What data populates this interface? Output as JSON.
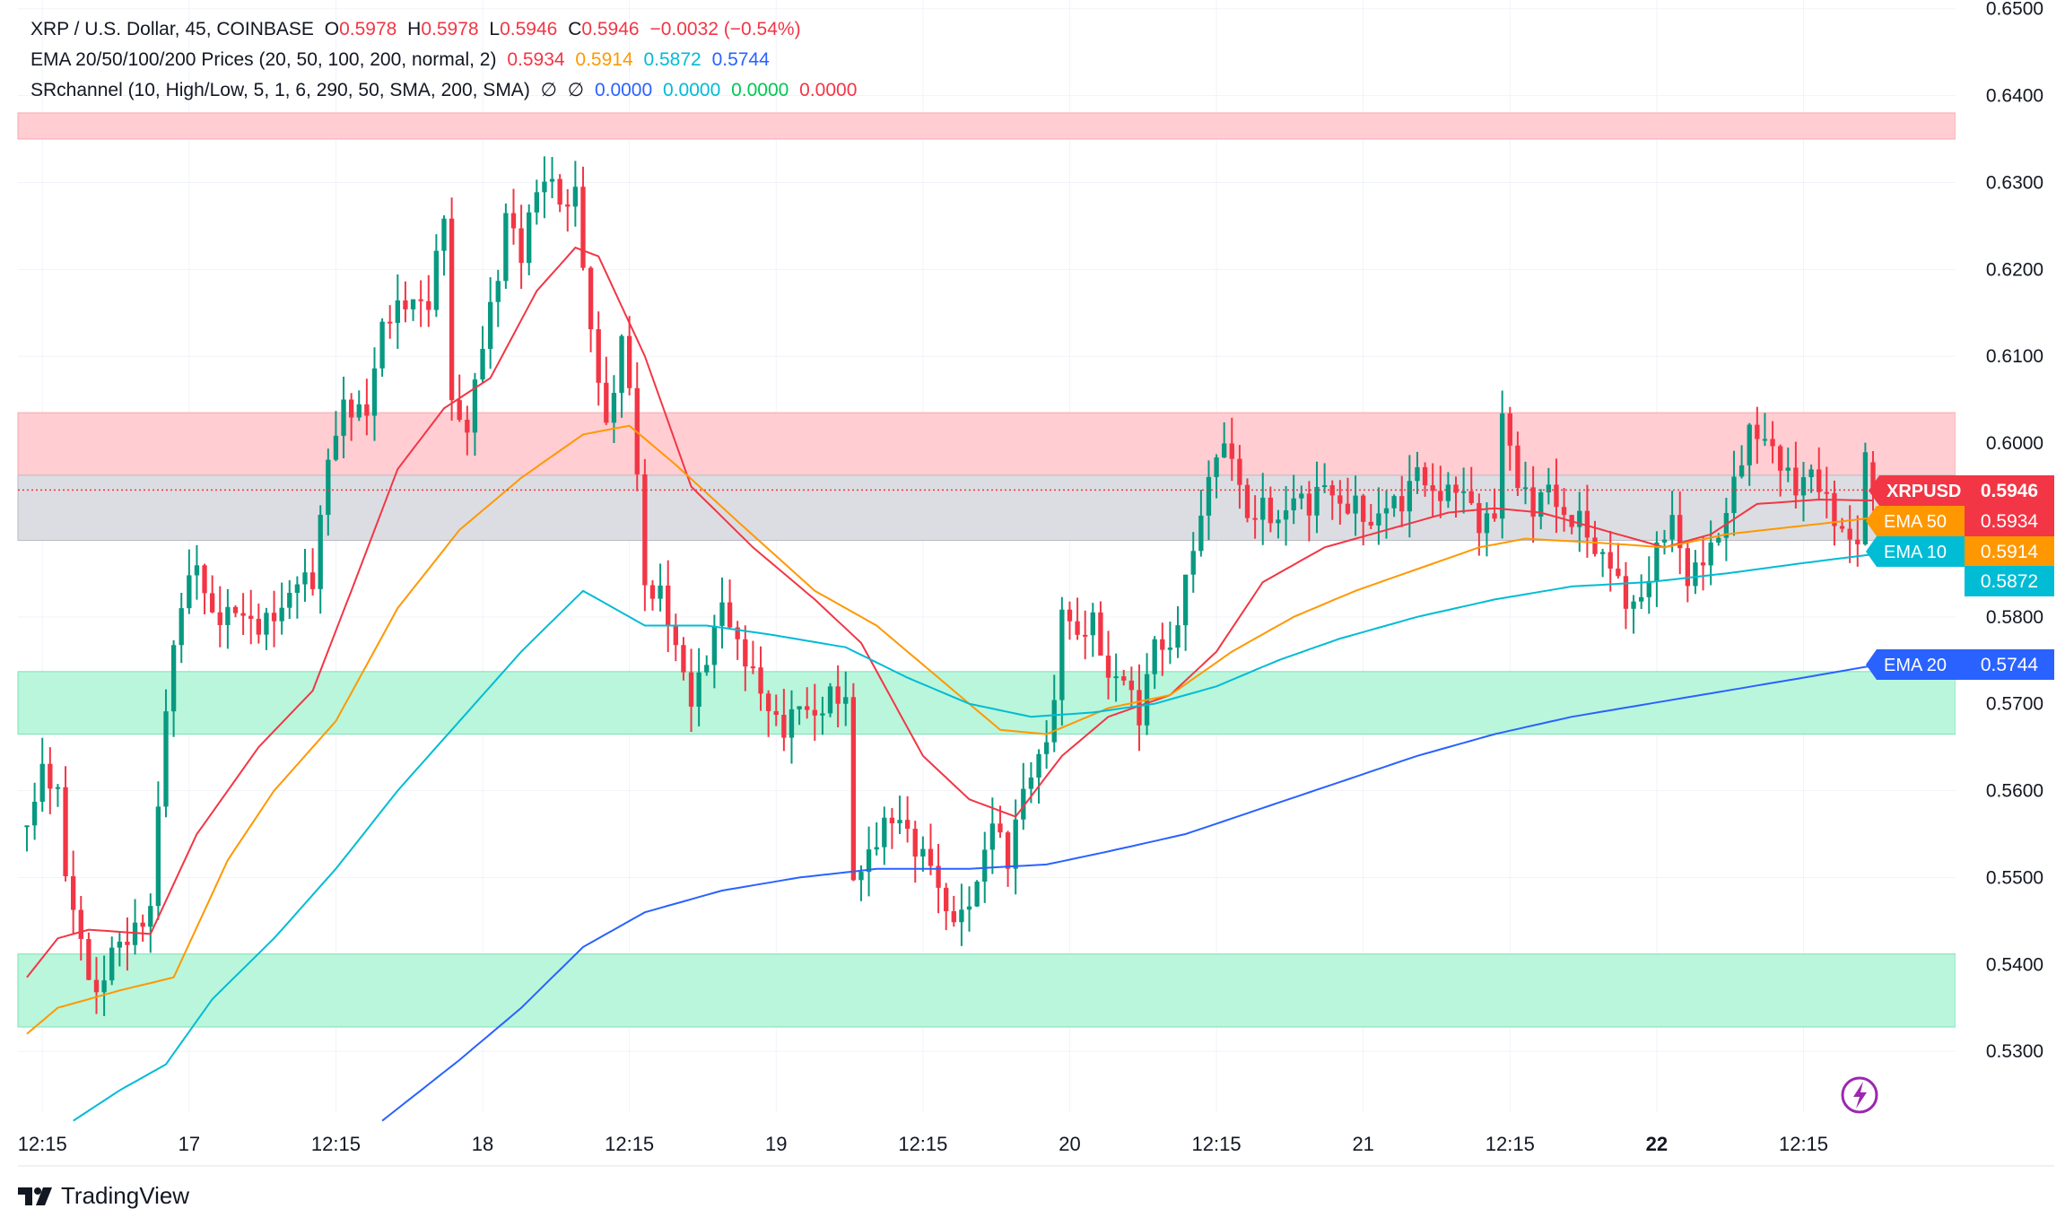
{
  "header": {
    "symbol_line": {
      "name": "XRP / U.S. Dollar, 45, COINBASE",
      "open_label": "O",
      "open": "0.5978",
      "high_label": "H",
      "high": "0.5978",
      "low_label": "L",
      "low": "0.5946",
      "close_label": "C",
      "close": "0.5946",
      "change": "−0.0032 (−0.54%)"
    },
    "ema_line": {
      "name": "EMA 20/50/100/200 Prices (20, 50, 100, 200, normal, 2)",
      "v20": "0.5934",
      "v50": "0.5914",
      "v100": "0.5872",
      "v200": "0.5744"
    },
    "sr_line": {
      "name": "SRchannel (10, High/Low, 5, 1, 6, 290, 50, SMA, 200, SMA)",
      "na1": "∅",
      "na2": "∅",
      "v1": "0.0000",
      "v2": "0.0000",
      "v3": "0.0000",
      "v4": "0.0000"
    }
  },
  "branding": {
    "name": "TradingView"
  },
  "colors": {
    "up": "#089981",
    "down": "#f23645",
    "ema20": "#f23645",
    "ema50": "#ff9800",
    "ema100": "#00bcd4",
    "ema200": "#2962ff",
    "resistance": "#ffcdd2",
    "support": "#b9f6dc",
    "gray_zone": "#dcdde2",
    "axis_text": "#131722",
    "grid": "#f0f3fa"
  },
  "chart_data": {
    "type": "candlestick",
    "title": "XRP / U.S. Dollar, 45, COINBASE",
    "timeframe": "45",
    "y_axis": {
      "ylim": [
        0.523,
        0.651
      ],
      "ticks": [
        "0.6500",
        "0.6400",
        "0.6300",
        "0.6200",
        "0.6100",
        "0.6000",
        "0.5900",
        "0.5800",
        "0.5700",
        "0.5600",
        "0.5500",
        "0.5400",
        "0.5300"
      ]
    },
    "x_axis": {
      "ticks": [
        {
          "label": "12:15",
          "index": 2
        },
        {
          "label": "17",
          "index": 21
        },
        {
          "label": "12:15",
          "index": 40
        },
        {
          "label": "18",
          "index": 59
        },
        {
          "label": "12:15",
          "index": 78
        },
        {
          "label": "19",
          "index": 97
        },
        {
          "label": "12:15",
          "index": 116
        },
        {
          "label": "20",
          "index": 135
        },
        {
          "label": "12:15",
          "index": 154
        },
        {
          "label": "21",
          "index": 173
        },
        {
          "label": "12:15",
          "index": 192
        },
        {
          "label": "22",
          "index": 211,
          "bold": true
        },
        {
          "label": "12:15",
          "index": 230
        }
      ],
      "bar_count": 240
    },
    "zones": [
      {
        "kind": "resistance",
        "from": 0.635,
        "to": 0.638
      },
      {
        "kind": "resistance",
        "from": 0.596,
        "to": 0.6035
      },
      {
        "kind": "neutral",
        "from": 0.5888,
        "to": 0.5963
      },
      {
        "kind": "support",
        "from": 0.5665,
        "to": 0.5737
      },
      {
        "kind": "support",
        "from": 0.5328,
        "to": 0.5412
      }
    ],
    "last_price_line": 0.5946,
    "candle_keyframes": [
      [
        0,
        0.556
      ],
      [
        2,
        0.561
      ],
      [
        4,
        0.558
      ],
      [
        5,
        0.549
      ],
      [
        7,
        0.542
      ],
      [
        9,
        0.537
      ],
      [
        11,
        0.5435
      ],
      [
        14,
        0.5445
      ],
      [
        16,
        0.5455
      ],
      [
        18,
        0.568
      ],
      [
        20,
        0.5805
      ],
      [
        22,
        0.586
      ],
      [
        24,
        0.581
      ],
      [
        27,
        0.5825
      ],
      [
        30,
        0.5785
      ],
      [
        33,
        0.579
      ],
      [
        35,
        0.583
      ],
      [
        37,
        0.584
      ],
      [
        39,
        0.5995
      ],
      [
        41,
        0.606
      ],
      [
        44,
        0.604
      ],
      [
        46,
        0.6125
      ],
      [
        49,
        0.6145
      ],
      [
        52,
        0.616
      ],
      [
        54,
        0.628
      ],
      [
        55,
        0.606
      ],
      [
        57,
        0.603
      ],
      [
        59,
        0.612
      ],
      [
        61,
        0.618
      ],
      [
        62,
        0.625
      ],
      [
        64,
        0.62
      ],
      [
        66,
        0.629
      ],
      [
        68,
        0.631
      ],
      [
        70,
        0.628
      ],
      [
        71,
        0.632
      ],
      [
        72,
        0.621
      ],
      [
        73,
        0.614
      ],
      [
        75,
        0.601
      ],
      [
        77,
        0.61
      ],
      [
        78,
        0.605
      ],
      [
        79,
        0.595
      ],
      [
        80,
        0.582
      ],
      [
        82,
        0.583
      ],
      [
        84,
        0.578
      ],
      [
        86,
        0.572
      ],
      [
        88,
        0.576
      ],
      [
        90,
        0.581
      ],
      [
        92,
        0.575
      ],
      [
        94,
        0.572
      ],
      [
        96,
        0.569
      ],
      [
        98,
        0.568
      ],
      [
        100,
        0.572
      ],
      [
        102,
        0.5695
      ],
      [
        104,
        0.571
      ],
      [
        106,
        0.569
      ],
      [
        107,
        0.548
      ],
      [
        109,
        0.551
      ],
      [
        111,
        0.556
      ],
      [
        113,
        0.558
      ],
      [
        115,
        0.555
      ],
      [
        117,
        0.553
      ],
      [
        119,
        0.5455
      ],
      [
        121,
        0.544
      ],
      [
        123,
        0.5475
      ],
      [
        125,
        0.556
      ],
      [
        127,
        0.5525
      ],
      [
        129,
        0.562
      ],
      [
        131,
        0.565
      ],
      [
        133,
        0.57
      ],
      [
        134,
        0.581
      ],
      [
        136,
        0.576
      ],
      [
        138,
        0.578
      ],
      [
        140,
        0.572
      ],
      [
        142,
        0.574
      ],
      [
        144,
        0.57
      ],
      [
        146,
        0.579
      ],
      [
        148,
        0.576
      ],
      [
        150,
        0.583
      ],
      [
        152,
        0.59
      ],
      [
        154,
        0.598
      ],
      [
        156,
        0.599
      ],
      [
        158,
        0.5925
      ],
      [
        160,
        0.5945
      ],
      [
        162,
        0.5915
      ],
      [
        164,
        0.5935
      ],
      [
        166,
        0.591
      ],
      [
        168,
        0.594
      ],
      [
        170,
        0.592
      ],
      [
        172,
        0.594
      ],
      [
        174,
        0.592
      ],
      [
        176,
        0.5945
      ],
      [
        178,
        0.593
      ],
      [
        180,
        0.596
      ],
      [
        182,
        0.592
      ],
      [
        184,
        0.5935
      ],
      [
        186,
        0.595
      ],
      [
        188,
        0.592
      ],
      [
        190,
        0.5935
      ],
      [
        191,
        0.6045
      ],
      [
        193,
        0.5955
      ],
      [
        195,
        0.591
      ],
      [
        197,
        0.5935
      ],
      [
        199,
        0.59
      ],
      [
        201,
        0.592
      ],
      [
        203,
        0.589
      ],
      [
        205,
        0.588
      ],
      [
        207,
        0.582
      ],
      [
        209,
        0.581
      ],
      [
        211,
        0.586
      ],
      [
        213,
        0.59
      ],
      [
        215,
        0.584
      ],
      [
        217,
        0.588
      ],
      [
        219,
        0.591
      ],
      [
        221,
        0.5965
      ],
      [
        223,
        0.601
      ],
      [
        225,
        0.599
      ],
      [
        227,
        0.596
      ],
      [
        229,
        0.594
      ],
      [
        231,
        0.5975
      ],
      [
        233,
        0.595
      ],
      [
        235,
        0.591
      ],
      [
        237,
        0.589
      ],
      [
        238,
        0.5978
      ],
      [
        239,
        0.5946
      ]
    ],
    "ema_series": [
      {
        "name": "EMA 20",
        "color": "#f23645",
        "points": [
          [
            0,
            0.5385
          ],
          [
            4,
            0.543
          ],
          [
            8,
            0.544
          ],
          [
            16,
            0.5435
          ],
          [
            22,
            0.555
          ],
          [
            30,
            0.565
          ],
          [
            37,
            0.5715
          ],
          [
            42,
            0.583
          ],
          [
            48,
            0.597
          ],
          [
            54,
            0.604
          ],
          [
            60,
            0.6075
          ],
          [
            66,
            0.6175
          ],
          [
            71,
            0.6225
          ],
          [
            74,
            0.6215
          ],
          [
            80,
            0.61
          ],
          [
            86,
            0.595
          ],
          [
            94,
            0.588
          ],
          [
            102,
            0.582
          ],
          [
            108,
            0.577
          ],
          [
            116,
            0.564
          ],
          [
            122,
            0.559
          ],
          [
            128,
            0.557
          ],
          [
            134,
            0.564
          ],
          [
            140,
            0.5685
          ],
          [
            148,
            0.571
          ],
          [
            154,
            0.576
          ],
          [
            160,
            0.584
          ],
          [
            168,
            0.588
          ],
          [
            176,
            0.59
          ],
          [
            184,
            0.592
          ],
          [
            190,
            0.5925
          ],
          [
            196,
            0.592
          ],
          [
            204,
            0.59
          ],
          [
            212,
            0.588
          ],
          [
            218,
            0.5895
          ],
          [
            224,
            0.593
          ],
          [
            232,
            0.5935
          ],
          [
            239,
            0.5934
          ]
        ]
      },
      {
        "name": "EMA 50",
        "color": "#ff9800",
        "points": [
          [
            0,
            0.532
          ],
          [
            4,
            0.535
          ],
          [
            12,
            0.537
          ],
          [
            19,
            0.5385
          ],
          [
            26,
            0.552
          ],
          [
            32,
            0.56
          ],
          [
            40,
            0.568
          ],
          [
            48,
            0.581
          ],
          [
            56,
            0.59
          ],
          [
            64,
            0.596
          ],
          [
            72,
            0.601
          ],
          [
            78,
            0.602
          ],
          [
            84,
            0.5975
          ],
          [
            92,
            0.591
          ],
          [
            102,
            0.583
          ],
          [
            110,
            0.579
          ],
          [
            118,
            0.573
          ],
          [
            126,
            0.567
          ],
          [
            132,
            0.5665
          ],
          [
            140,
            0.5695
          ],
          [
            148,
            0.571
          ],
          [
            156,
            0.576
          ],
          [
            164,
            0.58
          ],
          [
            172,
            0.583
          ],
          [
            180,
            0.5855
          ],
          [
            188,
            0.588
          ],
          [
            194,
            0.589
          ],
          [
            204,
            0.5885
          ],
          [
            212,
            0.588
          ],
          [
            220,
            0.5895
          ],
          [
            230,
            0.5905
          ],
          [
            239,
            0.5914
          ]
        ]
      },
      {
        "name": "EMA 100",
        "color": "#00bcd4",
        "points": [
          [
            6,
            0.522
          ],
          [
            12,
            0.5255
          ],
          [
            18,
            0.5285
          ],
          [
            24,
            0.536
          ],
          [
            32,
            0.543
          ],
          [
            40,
            0.551
          ],
          [
            48,
            0.56
          ],
          [
            56,
            0.568
          ],
          [
            64,
            0.576
          ],
          [
            72,
            0.583
          ],
          [
            80,
            0.579
          ],
          [
            88,
            0.579
          ],
          [
            96,
            0.578
          ],
          [
            106,
            0.5765
          ],
          [
            114,
            0.573
          ],
          [
            122,
            0.57
          ],
          [
            130,
            0.5685
          ],
          [
            138,
            0.569
          ],
          [
            146,
            0.57
          ],
          [
            154,
            0.572
          ],
          [
            162,
            0.575
          ],
          [
            170,
            0.5775
          ],
          [
            180,
            0.58
          ],
          [
            190,
            0.582
          ],
          [
            200,
            0.5835
          ],
          [
            210,
            0.584
          ],
          [
            220,
            0.585
          ],
          [
            230,
            0.5862
          ],
          [
            239,
            0.5872
          ]
        ]
      },
      {
        "name": "EMA 200",
        "color": "#2962ff",
        "points": [
          [
            46,
            0.522
          ],
          [
            56,
            0.529
          ],
          [
            64,
            0.535
          ],
          [
            72,
            0.542
          ],
          [
            80,
            0.546
          ],
          [
            90,
            0.5485
          ],
          [
            100,
            0.55
          ],
          [
            110,
            0.551
          ],
          [
            122,
            0.551
          ],
          [
            132,
            0.5515
          ],
          [
            140,
            0.553
          ],
          [
            150,
            0.555
          ],
          [
            160,
            0.558
          ],
          [
            170,
            0.561
          ],
          [
            180,
            0.564
          ],
          [
            190,
            0.5665
          ],
          [
            200,
            0.5685
          ],
          [
            210,
            0.57
          ],
          [
            220,
            0.5715
          ],
          [
            230,
            0.573
          ],
          [
            239,
            0.5744
          ]
        ]
      }
    ],
    "price_labels": [
      {
        "text": "XRPUSD",
        "value": "0.5946",
        "price": 0.5946,
        "color": "#f23645",
        "name": "xrpusd"
      },
      {
        "text": "EMA 50",
        "value": "0.5934",
        "price": 0.5934,
        "color": "#ff9800",
        "name": "ema50",
        "value_bg": "#f23645"
      },
      {
        "text": "EMA 10",
        "value": "0.5914",
        "price": 0.5914,
        "color": "#00bcd4",
        "name": "ema100",
        "value_bg": "#ff9800"
      },
      {
        "text": "",
        "value": "0.5872",
        "price": 0.5872,
        "color": "#00bcd4",
        "name": "ema100-value"
      },
      {
        "text": "EMA 20",
        "value": "0.5744",
        "price": 0.5744,
        "color": "#2962ff",
        "name": "ema200"
      }
    ]
  }
}
